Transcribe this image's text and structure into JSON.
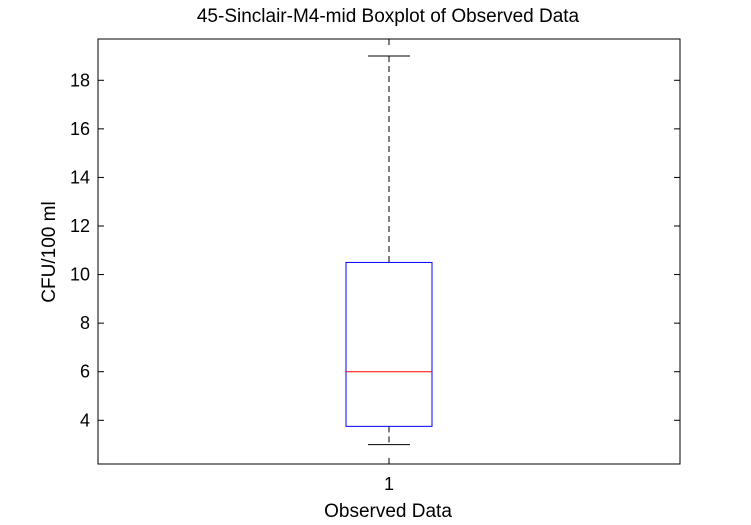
{
  "chart_data": {
    "type": "boxplot",
    "title": "45-Sinclair-M4-mid Boxplot of Observed Data",
    "xlabel": "Observed Data",
    "ylabel": "CFU/100 ml",
    "categories": [
      "1"
    ],
    "ylim": [
      2.2,
      19.7
    ],
    "yticks": [
      4,
      6,
      8,
      10,
      12,
      14,
      16,
      18
    ],
    "boxes": [
      {
        "category": "1",
        "whisker_low": 3,
        "q1": 3.75,
        "median": 6,
        "q3": 10.5,
        "whisker_high": 19
      }
    ],
    "grid": false,
    "colors": {
      "box": "#0000ff",
      "median": "#ff0000",
      "whisker": "#000000",
      "axes": "#000000"
    }
  }
}
